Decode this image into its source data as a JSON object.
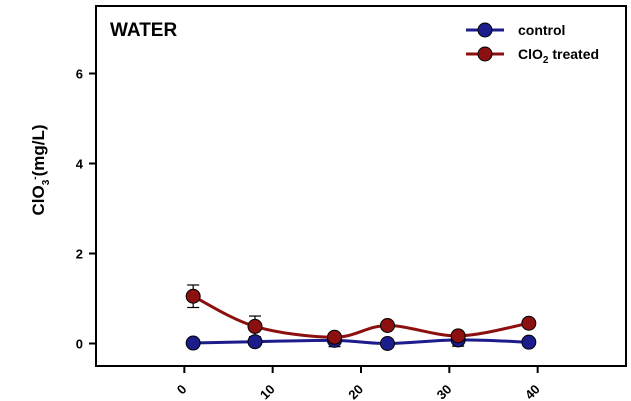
{
  "colors": {
    "control": "#1c1c8c",
    "treated": "#8c1010",
    "axis": "#000000"
  },
  "chart_data": {
    "type": "line",
    "annotation": "WATER",
    "ylabel": "ClO3-(mg/L)",
    "ylabel_parts": {
      "base": "ClO",
      "sub": "3",
      "sup": "-",
      "unit": "(mg/L)"
    },
    "xlabel": "",
    "xlim": [
      -10,
      50
    ],
    "ylim": [
      -0.5,
      7.5
    ],
    "x_ticks": [
      0,
      10,
      20,
      30,
      40
    ],
    "y_ticks": [
      0,
      2,
      4,
      6
    ],
    "grid": false,
    "legend_position": "top-right",
    "series": [
      {
        "name": "control",
        "color_key": "control",
        "x": [
          1,
          8,
          17,
          23,
          31,
          39
        ],
        "y": [
          0.01,
          0.04,
          0.07,
          0.0,
          0.08,
          0.03
        ],
        "error": [
          0.03,
          0.04,
          0.14,
          0.03,
          0.14,
          0.04
        ]
      },
      {
        "name": "ClO2 treated",
        "name_parts": {
          "base": "ClO",
          "sub": "2",
          "rest": " treated"
        },
        "color_key": "treated",
        "x": [
          1,
          8,
          17,
          23,
          31,
          39
        ],
        "y": [
          1.05,
          0.38,
          0.14,
          0.4,
          0.17,
          0.45
        ],
        "error": [
          0.25,
          0.23,
          0.08,
          0.05,
          0.05,
          0.04
        ]
      }
    ]
  }
}
